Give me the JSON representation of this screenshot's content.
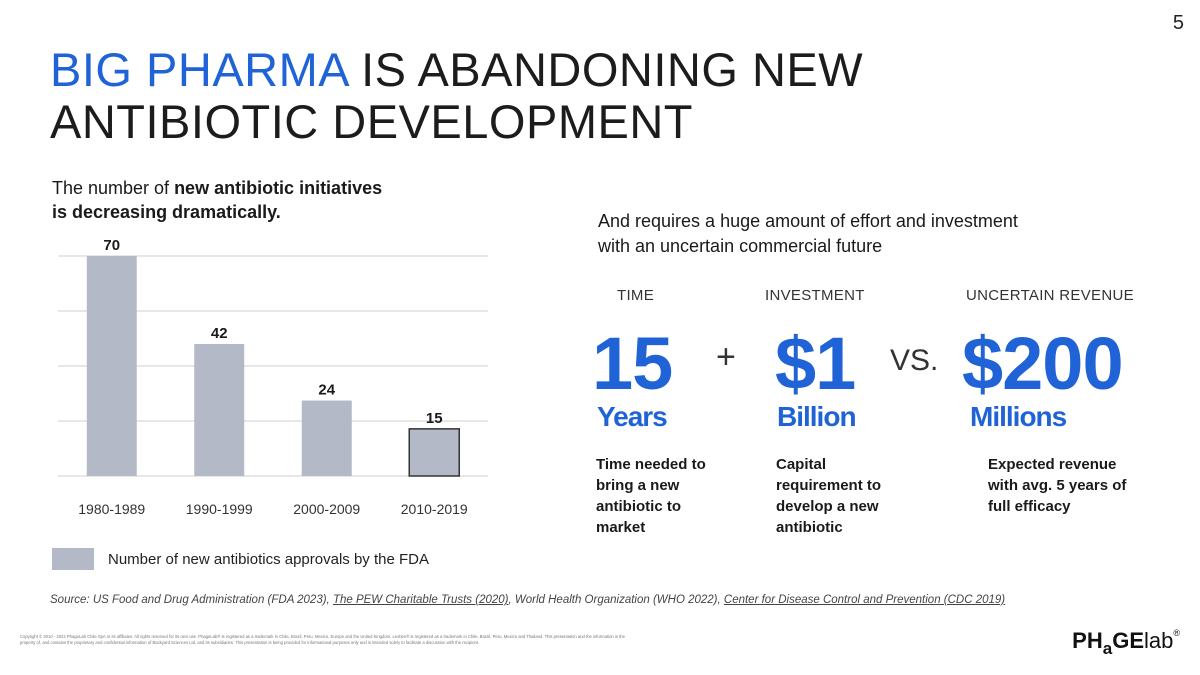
{
  "page_number": "5",
  "title": {
    "accent": "BIG PHARMA",
    "rest_line1": " IS ABANDONING NEW",
    "line2": "ANTIBIOTIC DEVELOPMENT"
  },
  "chart_heading": {
    "part1": "The number of ",
    "bold1": "new antibiotic initiatives",
    "bold2": "is decreasing dramatically."
  },
  "chart_data": {
    "type": "bar",
    "categories": [
      "1980-1989",
      "1990-1999",
      "2000-2009",
      "2010-2019"
    ],
    "values": [
      70,
      42,
      24,
      15
    ],
    "series": [
      {
        "name": "Number of new antibiotics approvals by the FDA",
        "values": [
          70,
          42,
          24,
          15
        ]
      }
    ],
    "ylim": [
      0,
      80
    ],
    "grid": true,
    "legend": "bottom-left",
    "colors": {
      "bar": "#b4b9c8",
      "highlight_border": "#333333"
    }
  },
  "legend_label": "Number of new antibiotics approvals by the FDA",
  "right_intro": {
    "line1": "And requires a huge amount of effort and investment",
    "line2": "with an uncertain commercial future"
  },
  "metrics": {
    "time": {
      "head": "TIME",
      "number": "15",
      "unit": "Years",
      "desc": [
        "Time needed to",
        "bring a new",
        "antibiotic to",
        "market"
      ]
    },
    "investment": {
      "head": "INVESTMENT",
      "number": "$1",
      "unit": "Billion",
      "desc": [
        "Capital",
        "requirement to",
        "develop a new",
        "antibiotic"
      ]
    },
    "revenue": {
      "head": "UNCERTAIN REVENUE",
      "number": "$200",
      "unit": "Millions",
      "desc": [
        "Expected revenue",
        "with avg. 5 years of",
        "full efficacy"
      ]
    },
    "plus": "+",
    "vs": "VS."
  },
  "source": {
    "prefix": "Source: US Food and Drug Administration (FDA 2023), ",
    "link1": "The PEW Charitable Trusts (2020)",
    "middle": ", World Health Organization (WHO 2022), ",
    "link2": "Center for Disease Control and Prevention (CDC 2019)"
  },
  "copyright": "Copyright © 2010 - 2022 PhageLab Chile SpA or its affiliates. All rights reserved for its own use. PhageLab® is registered as a trademark in Chile, Brazil, Peru, Mexico, Europe and the United Kingdom. Lexben® is registered as a trademark in Chile, Brazil, Peru, Mexico and Thailand. This presentation and the information is the property of, and contains the proprietary and confidential information of Backyard Sciences Ltd. and its subsidiaries. This presentation is being provided for informational purposes only and is intended solely to facilitate a discussion with the recipient.",
  "logo": {
    "ph": "PH",
    "a": "a",
    "ge": "GE",
    "lab": "lab",
    "reg": "®"
  },
  "colors": {
    "accent_blue": "#1f63d6",
    "bar_gray": "#b4b9c8"
  }
}
